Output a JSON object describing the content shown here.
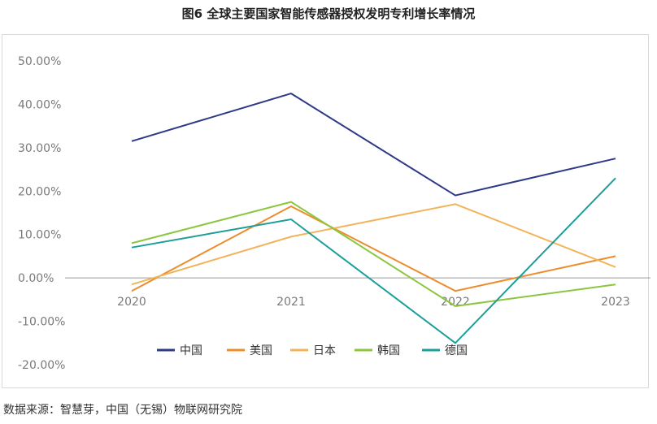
{
  "header": {
    "title": "图6 全球主要国家智能传感器授权发明专利增长率情况"
  },
  "footer": {
    "source": "数据来源：智慧芽，中国（无锡）物联网研究院"
  },
  "chart_data": {
    "type": "line",
    "x": [
      "2020",
      "2021",
      "2022",
      "2023"
    ],
    "ylim": [
      -20,
      50
    ],
    "yticks": [
      -20,
      -10,
      0,
      10,
      20,
      30,
      40,
      50
    ],
    "ytick_labels": [
      "-20.00%",
      "-10.00%",
      "0.00%",
      "10.00%",
      "20.00%",
      "30.00%",
      "40.00%",
      "50.00%"
    ],
    "grid": false,
    "legend": "bottom",
    "series": [
      {
        "name": "中国",
        "color": "#2e3a87",
        "values": [
          31.5,
          42.5,
          19.0,
          27.5
        ]
      },
      {
        "name": "美国",
        "color": "#ec8d2c",
        "values": [
          -3.0,
          16.5,
          -3.0,
          5.0
        ]
      },
      {
        "name": "日本",
        "color": "#f2b45a",
        "values": [
          -1.5,
          9.5,
          17.0,
          2.5
        ]
      },
      {
        "name": "韩国",
        "color": "#8cc63e",
        "values": [
          8.0,
          17.5,
          -6.5,
          -1.5
        ]
      },
      {
        "name": "德国",
        "color": "#1c9e9a",
        "values": [
          7.0,
          13.5,
          -15.0,
          23.0
        ]
      }
    ]
  }
}
